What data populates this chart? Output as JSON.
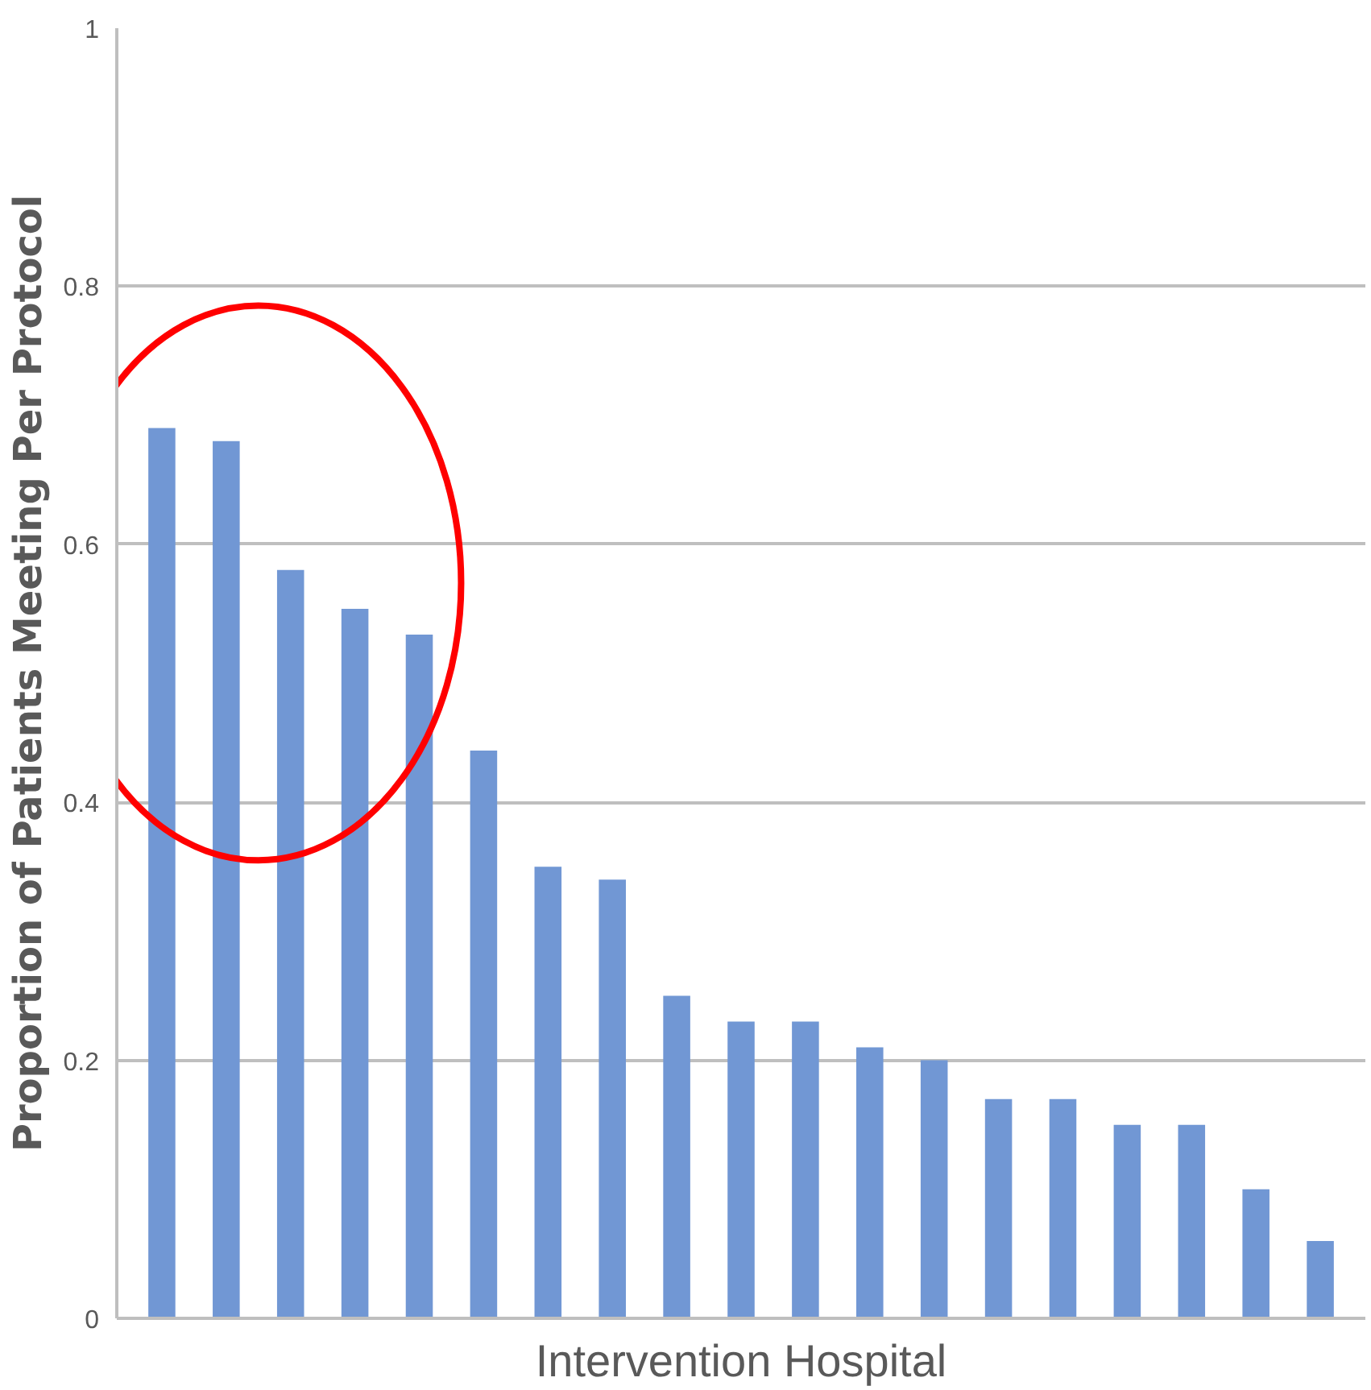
{
  "chart_data": {
    "type": "bar",
    "xlabel": "Intervention Hospital",
    "ylabel": "Proportion of Patients Meeting Per Protocol",
    "categories": [
      null,
      null,
      null,
      null,
      null,
      null,
      null,
      null,
      null,
      null,
      null,
      null,
      null,
      null,
      null,
      null,
      null,
      null,
      null
    ],
    "values": [
      0.69,
      0.68,
      0.58,
      0.55,
      0.53,
      0.44,
      0.35,
      0.34,
      0.25,
      0.23,
      0.23,
      0.21,
      0.2,
      0.17,
      0.17,
      0.15,
      0.15,
      0.1,
      0.06
    ],
    "color": "#7197d4",
    "ylim": [
      0,
      1
    ],
    "yticks": [
      0,
      0.2,
      0.4,
      0.6,
      0.8,
      1
    ],
    "grid": "y"
  }
}
